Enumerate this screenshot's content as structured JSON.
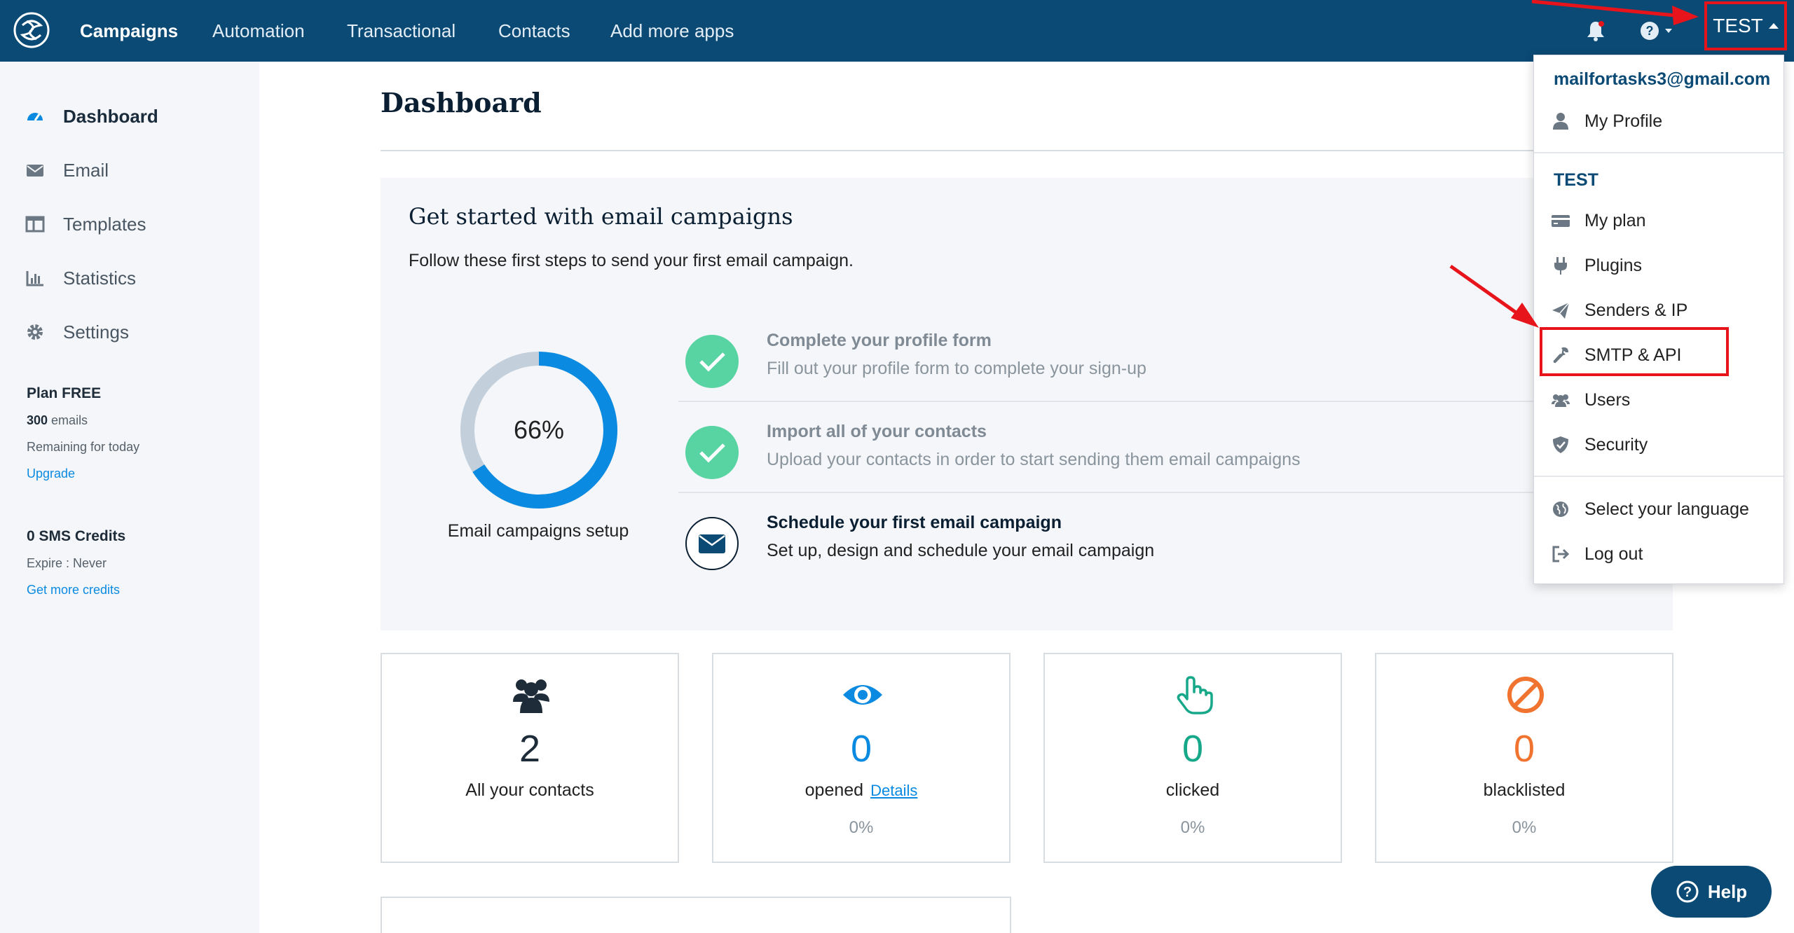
{
  "nav": {
    "items": [
      {
        "label": "Campaigns",
        "active": true
      },
      {
        "label": "Automation"
      },
      {
        "label": "Transactional"
      },
      {
        "label": "Contacts"
      },
      {
        "label": "Add more apps"
      }
    ],
    "user_label": "TEST"
  },
  "sidebar": {
    "items": [
      {
        "label": "Dashboard",
        "icon": "dashboard-icon",
        "active": true
      },
      {
        "label": "Email",
        "icon": "envelope-icon"
      },
      {
        "label": "Templates",
        "icon": "templates-icon"
      },
      {
        "label": "Statistics",
        "icon": "bar-chart-icon"
      },
      {
        "label": "Settings",
        "icon": "gear-icon"
      }
    ],
    "plan": {
      "title": "Plan FREE",
      "emails_count": "300",
      "emails_suffix": " emails",
      "remaining": "Remaining for today",
      "upgrade": "Upgrade"
    },
    "sms": {
      "title": "0 SMS Credits",
      "expire": "Expire : Never",
      "link": "Get more credits"
    }
  },
  "main": {
    "page_title": "Dashboard",
    "get_started": {
      "title": "Get started with email campaigns",
      "subtitle": "Follow these first steps to send your first email campaign.",
      "progress_percent": 66,
      "progress_text": "66%",
      "progress_label": "Email campaigns setup",
      "steps": [
        {
          "title": "Complete your profile form",
          "desc": "Fill out your profile form to complete your sign-up",
          "done": true
        },
        {
          "title": "Import all of your contacts",
          "desc": "Upload your contacts in order to start sending them email campaigns",
          "done": true
        },
        {
          "title": "Schedule your first email campaign",
          "desc": "Set up, design and schedule your email campaign",
          "done": false
        }
      ]
    },
    "stats": [
      {
        "value": "2",
        "label": "All your contacts",
        "pct": "",
        "icon": "users-icon",
        "color": "#1e2b38"
      },
      {
        "value": "0",
        "label": "opened",
        "link": "Details",
        "pct": "0%",
        "icon": "eye-icon",
        "color": "#0a8ae0"
      },
      {
        "value": "0",
        "label": "clicked",
        "pct": "0%",
        "icon": "pointer-hand-icon",
        "color": "#17a88a"
      },
      {
        "value": "0",
        "label": "blacklisted",
        "pct": "0%",
        "icon": "ban-icon",
        "color": "#f0742f"
      }
    ]
  },
  "dropdown": {
    "email": "mailfortasks3@gmail.com",
    "my_profile": "My Profile",
    "account_name": "TEST",
    "items": [
      {
        "label": "My plan",
        "icon": "credit-card-icon"
      },
      {
        "label": "Plugins",
        "icon": "plug-icon"
      },
      {
        "label": "Senders & IP",
        "icon": "paper-plane-icon"
      },
      {
        "label": "SMTP & API",
        "icon": "wrench-icon"
      },
      {
        "label": "Users",
        "icon": "users-icon"
      },
      {
        "label": "Security",
        "icon": "shield-icon"
      }
    ],
    "language": "Select your language",
    "logout": "Log out"
  },
  "help_button": "Help",
  "colors": {
    "nav_bg": "#0b4a74",
    "accent_blue": "#0a8ae0",
    "success_green": "#2ecc8a",
    "annotation_red": "#e8141b"
  }
}
